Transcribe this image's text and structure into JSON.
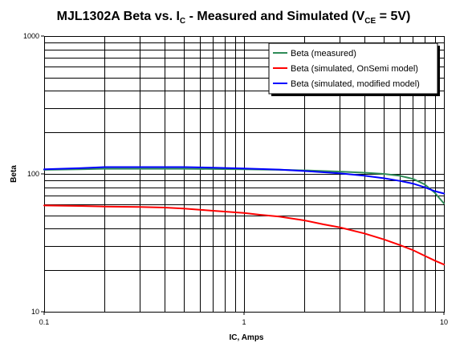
{
  "chart_data": {
    "type": "line",
    "title_parts": {
      "prefix": "MJL1302A Beta vs. I",
      "sub_c": "C",
      "middle": " - Measured and Simulated (V",
      "sub_ce": "CE",
      "suffix": " = 5V)"
    },
    "xlabel": "IC, Amps",
    "ylabel": "Beta",
    "x_scale": "log",
    "y_scale": "log",
    "xlim": [
      0.1,
      10
    ],
    "ylim": [
      10,
      1000
    ],
    "x_ticks": [
      {
        "value": 0.1,
        "label": "0.1"
      },
      {
        "value": 1,
        "label": "1"
      },
      {
        "value": 10,
        "label": "10"
      }
    ],
    "y_ticks": [
      {
        "value": 10,
        "label": "10"
      },
      {
        "value": 100,
        "label": "100"
      },
      {
        "value": 1000,
        "label": "1000"
      }
    ],
    "grid": true,
    "legend_position": "top-right",
    "series": [
      {
        "name": "Beta (measured)",
        "color": "#2e8b57",
        "points": [
          [
            0.1,
            107
          ],
          [
            0.15,
            108
          ],
          [
            0.2,
            109
          ],
          [
            0.3,
            109
          ],
          [
            0.5,
            109
          ],
          [
            0.7,
            108.5
          ],
          [
            1,
            108
          ],
          [
            1.5,
            107
          ],
          [
            2,
            106
          ],
          [
            3,
            104
          ],
          [
            4,
            102
          ],
          [
            5,
            100
          ],
          [
            6,
            97
          ],
          [
            7,
            92
          ],
          [
            8,
            84
          ],
          [
            9,
            73
          ],
          [
            10,
            61
          ]
        ]
      },
      {
        "name": "Beta (simulated, OnSemi model)",
        "color": "#ff0000",
        "points": [
          [
            0.1,
            59
          ],
          [
            0.15,
            58.5
          ],
          [
            0.2,
            58
          ],
          [
            0.3,
            57.5
          ],
          [
            0.4,
            57
          ],
          [
            0.5,
            56
          ],
          [
            0.6,
            55
          ],
          [
            0.7,
            54
          ],
          [
            1,
            52
          ],
          [
            1.2,
            50.5
          ],
          [
            1.5,
            49
          ],
          [
            2,
            46
          ],
          [
            2.5,
            43
          ],
          [
            3,
            41
          ],
          [
            4,
            37
          ],
          [
            5,
            33.5
          ],
          [
            6,
            30.5
          ],
          [
            7,
            28
          ],
          [
            8,
            25.5
          ],
          [
            9,
            23.5
          ],
          [
            10,
            22
          ]
        ]
      },
      {
        "name": "Beta (simulated, modified model)",
        "color": "#0000ff",
        "points": [
          [
            0.1,
            108
          ],
          [
            0.15,
            110
          ],
          [
            0.2,
            112
          ],
          [
            0.3,
            112
          ],
          [
            0.5,
            112
          ],
          [
            0.7,
            111
          ],
          [
            1,
            109.5
          ],
          [
            1.5,
            107.5
          ],
          [
            2,
            105
          ],
          [
            3,
            101
          ],
          [
            4,
            97
          ],
          [
            5,
            93
          ],
          [
            6,
            89
          ],
          [
            7,
            85
          ],
          [
            8,
            80
          ],
          [
            9,
            75
          ],
          [
            10,
            72
          ]
        ]
      }
    ]
  }
}
